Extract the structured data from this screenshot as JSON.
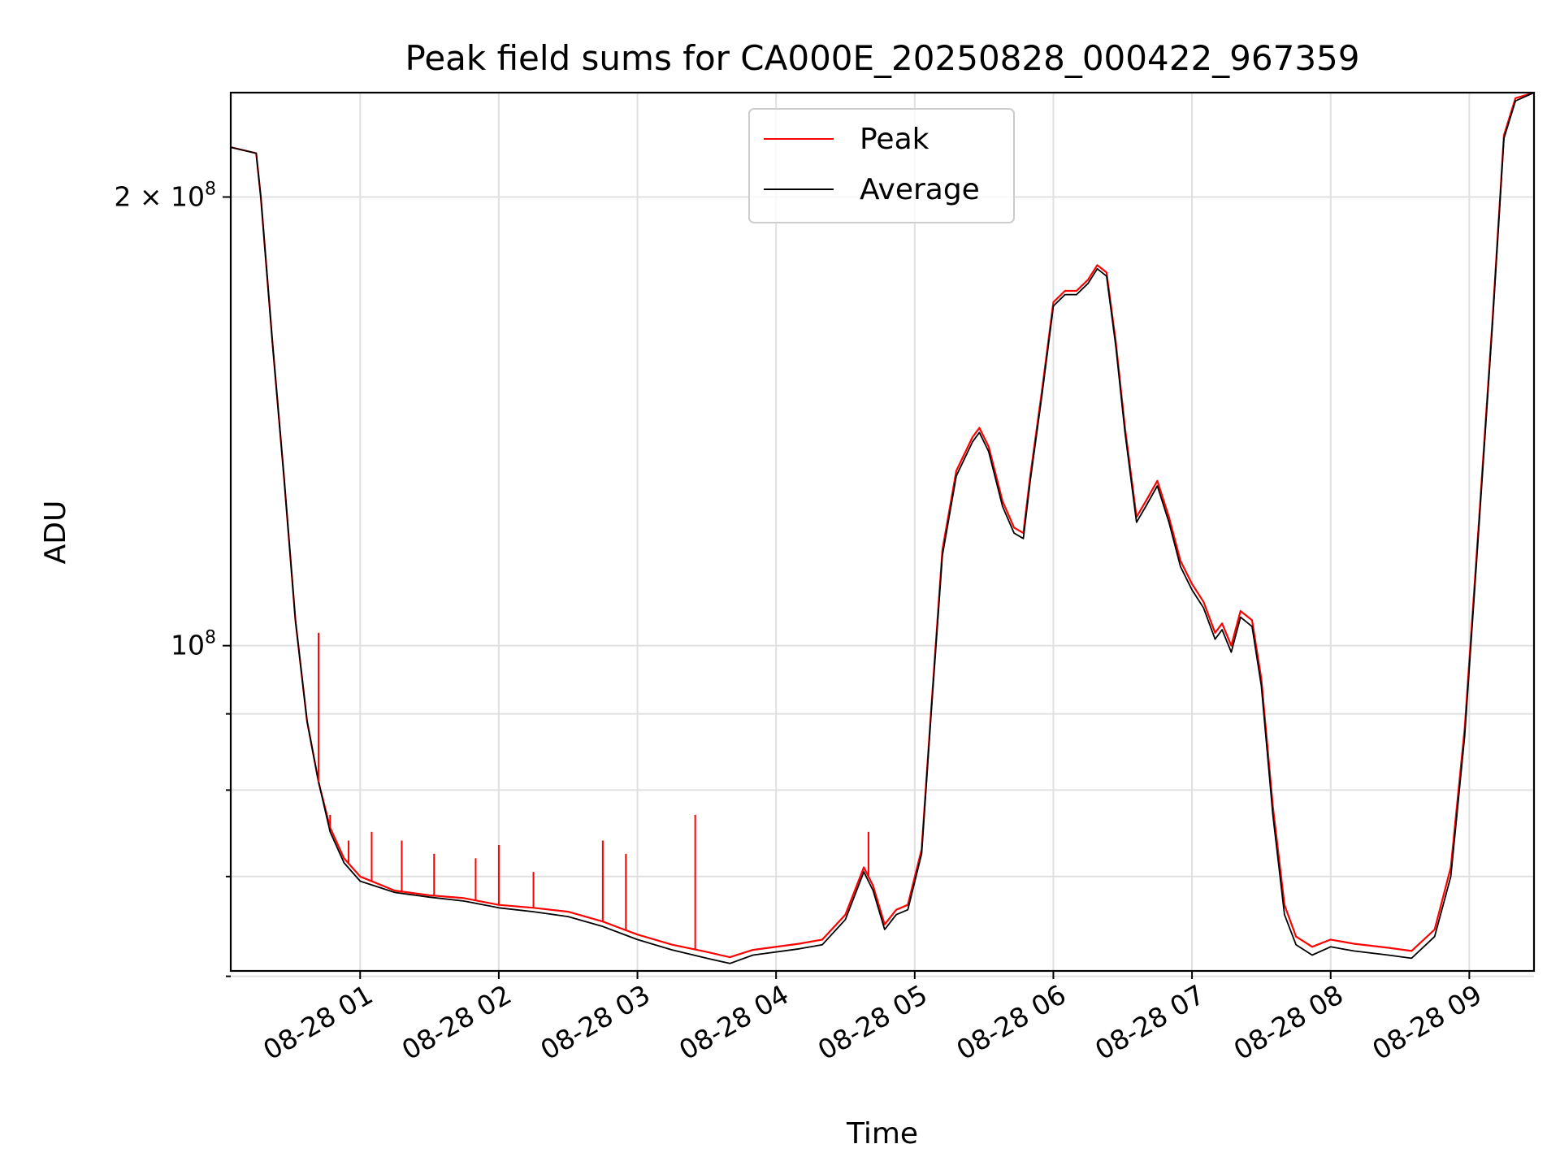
{
  "chart_data": {
    "type": "line",
    "title": "Peak field sums for CA000E_20250828_000422_967359",
    "xlabel": "Time",
    "ylabel": "ADU",
    "yscale": "log",
    "grid": true,
    "legend_position": "top-center",
    "xlim": [
      "2025-08-28 00:04",
      "2025-08-28 09:28"
    ],
    "ylim": [
      60500000,
      235000000
    ],
    "x_ticks": [
      "08-28 01",
      "08-28 02",
      "08-28 03",
      "08-28 04",
      "08-28 05",
      "08-28 06",
      "08-28 07",
      "08-28 08",
      "08-28 09"
    ],
    "y_ticks": [
      {
        "value": 100000000,
        "label": "10",
        "exponent": "8"
      },
      {
        "value": 200000000,
        "label": "2 × 10",
        "exponent": "8"
      }
    ],
    "series": [
      {
        "name": "Peak",
        "color": "#ff0000",
        "points": [
          [
            "2025-08-28 00:04",
            216000000
          ],
          [
            "2025-08-28 00:15",
            214000000
          ],
          [
            "2025-08-28 00:17",
            200000000
          ],
          [
            "2025-08-28 00:22",
            160000000
          ],
          [
            "2025-08-28 00:27",
            130000000
          ],
          [
            "2025-08-28 00:32",
            104000000
          ],
          [
            "2025-08-28 00:37",
            89000000
          ],
          [
            "2025-08-28 00:42",
            81000000
          ],
          [
            "2025-08-28 00:47",
            75500000
          ],
          [
            "2025-08-28 00:53",
            72000000
          ],
          [
            "2025-08-28 01:00",
            70000000
          ],
          [
            "2025-08-28 01:15",
            68500000
          ],
          [
            "2025-08-28 01:30",
            68000000
          ],
          [
            "2025-08-28 01:45",
            67700000
          ],
          [
            "2025-08-28 02:00",
            67000000
          ],
          [
            "2025-08-28 02:15",
            66700000
          ],
          [
            "2025-08-28 02:30",
            66300000
          ],
          [
            "2025-08-28 02:45",
            65300000
          ],
          [
            "2025-08-28 03:00",
            64000000
          ],
          [
            "2025-08-28 03:15",
            63000000
          ],
          [
            "2025-08-28 03:30",
            62300000
          ],
          [
            "2025-08-28 03:40",
            61800000
          ],
          [
            "2025-08-28 03:50",
            62500000
          ],
          [
            "2025-08-28 04:10",
            63100000
          ],
          [
            "2025-08-28 04:20",
            63500000
          ],
          [
            "2025-08-28 04:30",
            66000000
          ],
          [
            "2025-08-28 04:38",
            71000000
          ],
          [
            "2025-08-28 04:42",
            69000000
          ],
          [
            "2025-08-28 04:47",
            65000000
          ],
          [
            "2025-08-28 04:52",
            66500000
          ],
          [
            "2025-08-28 04:57",
            67000000
          ],
          [
            "2025-08-28 05:03",
            73000000
          ],
          [
            "2025-08-28 05:07",
            90000000
          ],
          [
            "2025-08-28 05:12",
            116000000
          ],
          [
            "2025-08-28 05:18",
            131000000
          ],
          [
            "2025-08-28 05:25",
            138000000
          ],
          [
            "2025-08-28 05:28",
            140000000
          ],
          [
            "2025-08-28 05:32",
            136000000
          ],
          [
            "2025-08-28 05:38",
            125000000
          ],
          [
            "2025-08-28 05:43",
            120000000
          ],
          [
            "2025-08-28 05:47",
            119000000
          ],
          [
            "2025-08-28 05:50",
            130000000
          ],
          [
            "2025-08-28 05:55",
            148000000
          ],
          [
            "2025-08-28 06:00",
            170000000
          ],
          [
            "2025-08-28 06:05",
            173000000
          ],
          [
            "2025-08-28 06:10",
            173000000
          ],
          [
            "2025-08-28 06:15",
            176000000
          ],
          [
            "2025-08-28 06:19",
            180000000
          ],
          [
            "2025-08-28 06:23",
            178000000
          ],
          [
            "2025-08-28 06:27",
            160000000
          ],
          [
            "2025-08-28 06:31",
            140000000
          ],
          [
            "2025-08-28 06:36",
            122000000
          ],
          [
            "2025-08-28 06:40",
            125000000
          ],
          [
            "2025-08-28 06:45",
            129000000
          ],
          [
            "2025-08-28 06:50",
            122000000
          ],
          [
            "2025-08-28 06:55",
            114000000
          ],
          [
            "2025-08-28 07:00",
            110000000
          ],
          [
            "2025-08-28 07:05",
            107000000
          ],
          [
            "2025-08-28 07:10",
            102000000
          ],
          [
            "2025-08-28 07:13",
            103500000
          ],
          [
            "2025-08-28 07:17",
            100000000
          ],
          [
            "2025-08-28 07:21",
            105500000
          ],
          [
            "2025-08-28 07:26",
            104000000
          ],
          [
            "2025-08-28 07:30",
            95000000
          ],
          [
            "2025-08-28 07:35",
            78000000
          ],
          [
            "2025-08-28 07:40",
            67000000
          ],
          [
            "2025-08-28 07:45",
            63800000
          ],
          [
            "2025-08-28 07:52",
            62800000
          ],
          [
            "2025-08-28 08:00",
            63500000
          ],
          [
            "2025-08-28 08:10",
            63100000
          ],
          [
            "2025-08-28 08:25",
            62700000
          ],
          [
            "2025-08-28 08:35",
            62400000
          ],
          [
            "2025-08-28 08:45",
            64500000
          ],
          [
            "2025-08-28 08:52",
            71000000
          ],
          [
            "2025-08-28 08:58",
            88000000
          ],
          [
            "2025-08-28 09:04",
            120000000
          ],
          [
            "2025-08-28 09:10",
            165000000
          ],
          [
            "2025-08-28 09:15",
            220000000
          ],
          [
            "2025-08-28 09:20",
            233000000
          ],
          [
            "2025-08-28 09:28",
            235000000
          ]
        ]
      },
      {
        "name": "Average",
        "color": "#000000",
        "points": [
          [
            "2025-08-28 00:04",
            216000000
          ],
          [
            "2025-08-28 00:15",
            214000000
          ],
          [
            "2025-08-28 00:17",
            200000000
          ],
          [
            "2025-08-28 00:22",
            160000000
          ],
          [
            "2025-08-28 00:27",
            130000000
          ],
          [
            "2025-08-28 00:32",
            104000000
          ],
          [
            "2025-08-28 00:37",
            89000000
          ],
          [
            "2025-08-28 00:42",
            81000000
          ],
          [
            "2025-08-28 00:47",
            75000000
          ],
          [
            "2025-08-28 00:53",
            71500000
          ],
          [
            "2025-08-28 01:00",
            69500000
          ],
          [
            "2025-08-28 01:15",
            68300000
          ],
          [
            "2025-08-28 01:30",
            67800000
          ],
          [
            "2025-08-28 01:45",
            67400000
          ],
          [
            "2025-08-28 02:00",
            66700000
          ],
          [
            "2025-08-28 02:15",
            66300000
          ],
          [
            "2025-08-28 02:30",
            65800000
          ],
          [
            "2025-08-28 02:45",
            64800000
          ],
          [
            "2025-08-28 03:00",
            63500000
          ],
          [
            "2025-08-28 03:15",
            62500000
          ],
          [
            "2025-08-28 03:30",
            61700000
          ],
          [
            "2025-08-28 03:40",
            61200000
          ],
          [
            "2025-08-28 03:50",
            62000000
          ],
          [
            "2025-08-28 04:10",
            62600000
          ],
          [
            "2025-08-28 04:20",
            63000000
          ],
          [
            "2025-08-28 04:30",
            65500000
          ],
          [
            "2025-08-28 04:38",
            70500000
          ],
          [
            "2025-08-28 04:42",
            68500000
          ],
          [
            "2025-08-28 04:47",
            64500000
          ],
          [
            "2025-08-28 04:52",
            66000000
          ],
          [
            "2025-08-28 04:57",
            66500000
          ],
          [
            "2025-08-28 05:03",
            72500000
          ],
          [
            "2025-08-28 05:07",
            89500000
          ],
          [
            "2025-08-28 05:12",
            115000000
          ],
          [
            "2025-08-28 05:18",
            130000000
          ],
          [
            "2025-08-28 05:25",
            137000000
          ],
          [
            "2025-08-28 05:28",
            139000000
          ],
          [
            "2025-08-28 05:32",
            135000000
          ],
          [
            "2025-08-28 05:38",
            124000000
          ],
          [
            "2025-08-28 05:43",
            119000000
          ],
          [
            "2025-08-28 05:47",
            118000000
          ],
          [
            "2025-08-28 05:50",
            129000000
          ],
          [
            "2025-08-28 05:55",
            147000000
          ],
          [
            "2025-08-28 06:00",
            169000000
          ],
          [
            "2025-08-28 06:05",
            172000000
          ],
          [
            "2025-08-28 06:10",
            172000000
          ],
          [
            "2025-08-28 06:15",
            175000000
          ],
          [
            "2025-08-28 06:19",
            179000000
          ],
          [
            "2025-08-28 06:23",
            177000000
          ],
          [
            "2025-08-28 06:27",
            159000000
          ],
          [
            "2025-08-28 06:31",
            139000000
          ],
          [
            "2025-08-28 06:36",
            121000000
          ],
          [
            "2025-08-28 06:40",
            124000000
          ],
          [
            "2025-08-28 06:45",
            128000000
          ],
          [
            "2025-08-28 06:50",
            121000000
          ],
          [
            "2025-08-28 06:55",
            113000000
          ],
          [
            "2025-08-28 07:00",
            109000000
          ],
          [
            "2025-08-28 07:05",
            106000000
          ],
          [
            "2025-08-28 07:10",
            101000000
          ],
          [
            "2025-08-28 07:13",
            102500000
          ],
          [
            "2025-08-28 07:17",
            99000000
          ],
          [
            "2025-08-28 07:21",
            104500000
          ],
          [
            "2025-08-28 07:26",
            103000000
          ],
          [
            "2025-08-28 07:30",
            94000000
          ],
          [
            "2025-08-28 07:35",
            77000000
          ],
          [
            "2025-08-28 07:40",
            66000000
          ],
          [
            "2025-08-28 07:45",
            63000000
          ],
          [
            "2025-08-28 07:52",
            62000000
          ],
          [
            "2025-08-28 08:00",
            62800000
          ],
          [
            "2025-08-28 08:10",
            62400000
          ],
          [
            "2025-08-28 08:25",
            62000000
          ],
          [
            "2025-08-28 08:35",
            61700000
          ],
          [
            "2025-08-28 08:45",
            63800000
          ],
          [
            "2025-08-28 08:52",
            70000000
          ],
          [
            "2025-08-28 08:58",
            87000000
          ],
          [
            "2025-08-28 09:04",
            119000000
          ],
          [
            "2025-08-28 09:10",
            164000000
          ],
          [
            "2025-08-28 09:15",
            219000000
          ],
          [
            "2025-08-28 09:20",
            232000000
          ],
          [
            "2025-08-28 09:28",
            235000000
          ]
        ]
      }
    ],
    "peak_spikes": [
      [
        "2025-08-28 00:42",
        102000000
      ],
      [
        "2025-08-28 00:47",
        77000000
      ],
      [
        "2025-08-28 00:55",
        74000000
      ],
      [
        "2025-08-28 01:05",
        75000000
      ],
      [
        "2025-08-28 01:18",
        74000000
      ],
      [
        "2025-08-28 01:32",
        72500000
      ],
      [
        "2025-08-28 01:50",
        72000000
      ],
      [
        "2025-08-28 02:00",
        73500000
      ],
      [
        "2025-08-28 02:15",
        70500000
      ],
      [
        "2025-08-28 02:45",
        74000000
      ],
      [
        "2025-08-28 02:55",
        72500000
      ],
      [
        "2025-08-28 03:25",
        77000000
      ],
      [
        "2025-08-28 04:40",
        75000000
      ]
    ]
  }
}
